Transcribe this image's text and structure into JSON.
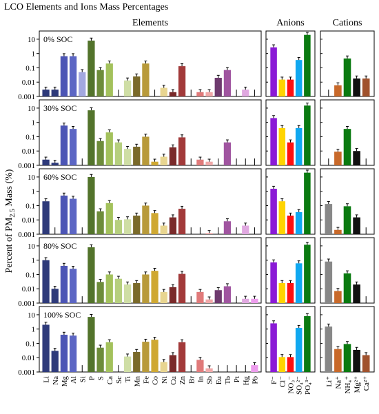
{
  "chart_data": {
    "type": "bar",
    "title": "LCO Elements and Ions Mass Percentages",
    "ylabel_parts": [
      "Percent of PM",
      "2.5",
      " Mass (%)"
    ],
    "yscale": "log",
    "ylim": [
      0.001,
      30
    ],
    "yticks": [
      "0.001",
      "0.01",
      "0.1",
      "1",
      "10"
    ],
    "groups": [
      {
        "title": "Elements",
        "categories": [
          "Li",
          "Na",
          "Mg",
          "Al",
          "Si",
          "P",
          "S",
          "Ca",
          "Sc",
          "Ti",
          "Mn",
          "Fe",
          "Co",
          "Ni",
          "Cu",
          "Zn",
          "Br",
          "In",
          "Sb",
          "Eu",
          "Tb",
          "Pt",
          "Hg",
          "Pb"
        ]
      },
      {
        "title": "Anions",
        "categories": [
          "F⁻",
          "Cl⁻",
          "NO₃⁻",
          "SO₄²⁻",
          "PO₄³⁻"
        ]
      },
      {
        "title": "Cations",
        "categories": [
          "Li⁺",
          "Na⁺",
          "NH₄⁺",
          "Mg²⁺",
          "Ca²⁺"
        ]
      }
    ],
    "colors": {
      "elements": [
        "#2e3a7a",
        "#2e3a7a",
        "#4c55b5",
        "#5c66c4",
        "#a3a8e0",
        "#53742c",
        "#6d8c3a",
        "#a3c15c",
        "#b6cf7e",
        "#cfdea5",
        "#7a6a2a",
        "#b89a3a",
        "#cfa832",
        "#e8d590",
        "#7a2a2a",
        "#a23a3a",
        "#cf5a5a",
        "#e07a7a",
        "#f0a8a8",
        "#6e3a6e",
        "#a055a0",
        "#c07ac0",
        "#e0a8e0",
        "#ec9cec"
      ],
      "anions": [
        "#8a1ad6",
        "#ffd400",
        "#ff1010",
        "#10a8f0",
        "#0a7a10"
      ],
      "cations": [
        "#888888",
        "#c8692a",
        "#0a7a10",
        "#111111",
        "#a0522d"
      ]
    },
    "panels": [
      {
        "label": "0% SOC",
        "elements": [
          0.003,
          0.003,
          0.65,
          0.65,
          0.05,
          8,
          0.07,
          0.2,
          0.001,
          0.013,
          0.025,
          0.2,
          0.001,
          0.004,
          0.002,
          0.13,
          0.001,
          0.002,
          0.002,
          0.02,
          0.07,
          0.001,
          0.003,
          0.001
        ],
        "anions": [
          2.7,
          0.015,
          0.015,
          0.35,
          20
        ],
        "cations": [
          0.001,
          0.006,
          0.45,
          0.018,
          0.018
        ]
      },
      {
        "label": "30% SOC",
        "elements": [
          0.0025,
          0.0015,
          0.6,
          0.35,
          0.001,
          7,
          0.05,
          0.2,
          0.04,
          0.014,
          0.02,
          0.1,
          0.0018,
          0.004,
          0.018,
          0.09,
          0.001,
          0.0025,
          0.0018,
          0.001,
          0.04,
          0.001,
          0.001,
          0.001
        ],
        "anions": [
          2,
          0.4,
          0.04,
          0.4,
          15
        ],
        "cations": [
          0.001,
          0.009,
          0.35,
          0.01,
          0.001
        ]
      },
      {
        "label": "60% SOC",
        "elements": [
          0.2,
          0.001,
          0.5,
          0.3,
          0.001,
          10,
          0.04,
          0.15,
          0.01,
          0.011,
          0.02,
          0.1,
          0.03,
          0.004,
          0.015,
          0.06,
          0.001,
          0.001,
          0.0012,
          0.001,
          0.008,
          0.001,
          0.004,
          0.001
        ],
        "anions": [
          1.5,
          0.2,
          0.02,
          0.035,
          20
        ],
        "cations": [
          0.13,
          0.002,
          0.09,
          0.015,
          0.001
        ]
      },
      {
        "label": "80% SOC",
        "elements": [
          1,
          0.01,
          0.4,
          0.25,
          0.001,
          8,
          0.03,
          0.1,
          0.05,
          0.02,
          0.025,
          0.1,
          0.18,
          0.006,
          0.013,
          0.11,
          0.001,
          0.006,
          0.0018,
          0.008,
          0.015,
          0.001,
          0.002,
          0.002
        ],
        "anions": [
          0.7,
          0.025,
          0.025,
          0.6,
          12
        ],
        "cations": [
          0.8,
          0.007,
          0.12,
          0.02,
          0.001
        ]
      },
      {
        "label": "100% SOC",
        "elements": [
          2,
          0.03,
          0.4,
          0.35,
          0.001,
          7,
          0.05,
          0.12,
          0.001,
          0.012,
          0.025,
          0.13,
          0.18,
          0.005,
          0.015,
          0.12,
          0.001,
          0.007,
          0.0018,
          0.001,
          0.001,
          0.001,
          0.001,
          0.003
        ],
        "anions": [
          2.5,
          0.011,
          0.011,
          1.2,
          8
        ],
        "cations": [
          1.5,
          0.04,
          0.09,
          0.035,
          0.015
        ]
      }
    ]
  }
}
